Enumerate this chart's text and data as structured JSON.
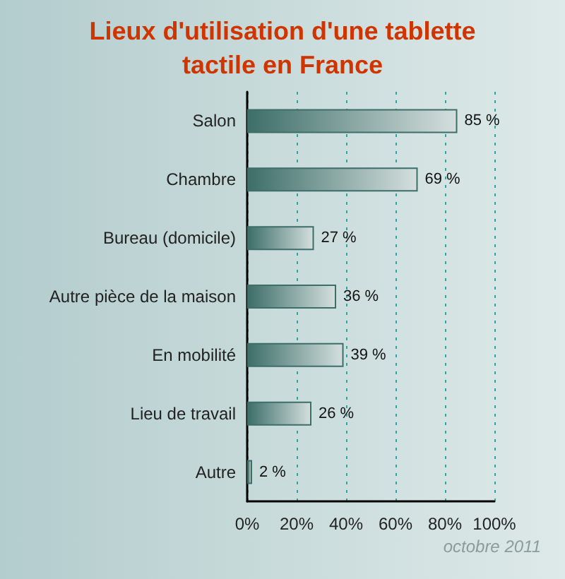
{
  "chart_data": {
    "type": "bar",
    "orientation": "horizontal",
    "title": "Lieux d'utilisation d'une tablette tactile en France",
    "categories": [
      "Salon",
      "Chambre",
      "Bureau (domicile)",
      "Autre pièce de la maison",
      "En mobilité",
      "Lieu de travail",
      "Autre"
    ],
    "values": [
      85,
      69,
      27,
      36,
      39,
      26,
      2
    ],
    "value_labels": [
      "85 %",
      "69 %",
      "27 %",
      "36 %",
      "39 %",
      "26 %",
      "2 %"
    ],
    "color": "#3d6e68",
    "xlim": [
      0,
      100
    ],
    "xticks": [
      {
        "value": 0,
        "label": "0%"
      },
      {
        "value": 20,
        "label": "20%"
      },
      {
        "value": 40,
        "label": "40%"
      },
      {
        "value": 60,
        "label": "60%"
      },
      {
        "value": 80,
        "label": "80%"
      },
      {
        "value": 100,
        "label": "100%"
      }
    ],
    "grid": "x",
    "annotations": [
      "octobre 2011"
    ]
  }
}
